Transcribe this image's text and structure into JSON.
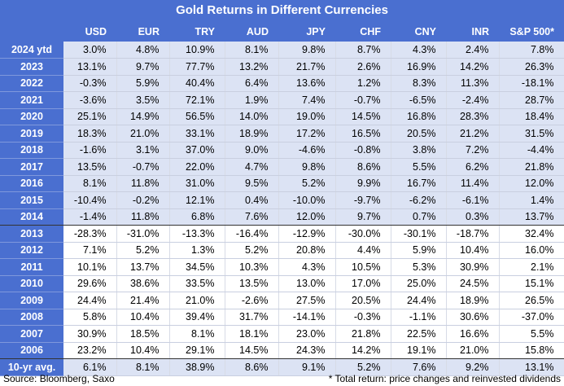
{
  "title": "Gold Returns in Different Currencies",
  "columns": [
    "",
    "USD",
    "EUR",
    "TRY",
    "AUD",
    "JPY",
    "CHF",
    "CNY",
    "INR",
    "S&P 500*"
  ],
  "rows": [
    {
      "label": "2024 ytd",
      "values": [
        "3.0%",
        "4.8%",
        "10.9%",
        "8.1%",
        "9.8%",
        "8.7%",
        "4.3%",
        "2.4%",
        "7.8%"
      ]
    },
    {
      "label": "2023",
      "values": [
        "13.1%",
        "9.7%",
        "77.7%",
        "13.2%",
        "21.7%",
        "2.6%",
        "16.9%",
        "14.2%",
        "26.3%"
      ]
    },
    {
      "label": "2022",
      "values": [
        "-0.3%",
        "5.9%",
        "40.4%",
        "6.4%",
        "13.6%",
        "1.2%",
        "8.3%",
        "11.3%",
        "-18.1%"
      ]
    },
    {
      "label": "2021",
      "values": [
        "-3.6%",
        "3.5%",
        "72.1%",
        "1.9%",
        "7.4%",
        "-0.7%",
        "-6.5%",
        "-2.4%",
        "28.7%"
      ]
    },
    {
      "label": "2020",
      "values": [
        "25.1%",
        "14.9%",
        "56.5%",
        "14.0%",
        "19.0%",
        "14.5%",
        "16.8%",
        "28.3%",
        "18.4%"
      ]
    },
    {
      "label": "2019",
      "values": [
        "18.3%",
        "21.0%",
        "33.1%",
        "18.9%",
        "17.2%",
        "16.5%",
        "20.5%",
        "21.2%",
        "31.5%"
      ]
    },
    {
      "label": "2018",
      "values": [
        "-1.6%",
        "3.1%",
        "37.0%",
        "9.0%",
        "-4.6%",
        "-0.8%",
        "3.8%",
        "7.2%",
        "-4.4%"
      ]
    },
    {
      "label": "2017",
      "values": [
        "13.5%",
        "-0.7%",
        "22.0%",
        "4.7%",
        "9.8%",
        "8.6%",
        "5.5%",
        "6.2%",
        "21.8%"
      ]
    },
    {
      "label": "2016",
      "values": [
        "8.1%",
        "11.8%",
        "31.0%",
        "9.5%",
        "5.2%",
        "9.9%",
        "16.7%",
        "11.4%",
        "12.0%"
      ]
    },
    {
      "label": "2015",
      "values": [
        "-10.4%",
        "-0.2%",
        "12.1%",
        "0.4%",
        "-10.0%",
        "-9.7%",
        "-6.2%",
        "-6.1%",
        "1.4%"
      ]
    },
    {
      "label": "2014",
      "values": [
        "-1.4%",
        "11.8%",
        "6.8%",
        "7.6%",
        "12.0%",
        "9.7%",
        "0.7%",
        "0.3%",
        "13.7%"
      ]
    },
    {
      "label": "2013",
      "values": [
        "-28.3%",
        "-31.0%",
        "-13.3%",
        "-16.4%",
        "-12.9%",
        "-30.0%",
        "-30.1%",
        "-18.7%",
        "32.4%"
      ]
    },
    {
      "label": "2012",
      "values": [
        "7.1%",
        "5.2%",
        "1.3%",
        "5.2%",
        "20.8%",
        "4.4%",
        "5.9%",
        "10.4%",
        "16.0%"
      ]
    },
    {
      "label": "2011",
      "values": [
        "10.1%",
        "13.7%",
        "34.5%",
        "10.3%",
        "4.3%",
        "10.5%",
        "5.3%",
        "30.9%",
        "2.1%"
      ]
    },
    {
      "label": "2010",
      "values": [
        "29.6%",
        "38.6%",
        "33.5%",
        "13.5%",
        "13.0%",
        "17.0%",
        "25.0%",
        "24.5%",
        "15.1%"
      ]
    },
    {
      "label": "2009",
      "values": [
        "24.4%",
        "21.4%",
        "21.0%",
        "-2.6%",
        "27.5%",
        "20.5%",
        "24.4%",
        "18.9%",
        "26.5%"
      ]
    },
    {
      "label": "2008",
      "values": [
        "5.8%",
        "10.4%",
        "39.4%",
        "31.7%",
        "-14.1%",
        "-0.3%",
        "-1.1%",
        "30.6%",
        "-37.0%"
      ]
    },
    {
      "label": "2007",
      "values": [
        "30.9%",
        "18.5%",
        "8.1%",
        "18.1%",
        "23.0%",
        "21.8%",
        "22.5%",
        "16.6%",
        "5.5%"
      ]
    },
    {
      "label": "2006",
      "values": [
        "23.2%",
        "10.4%",
        "29.1%",
        "14.5%",
        "24.3%",
        "14.2%",
        "19.1%",
        "21.0%",
        "15.8%"
      ]
    },
    {
      "label": "10-yr avg.",
      "values": [
        "6.1%",
        "8.1%",
        "38.9%",
        "8.6%",
        "9.1%",
        "5.2%",
        "7.6%",
        "9.2%",
        "13.1%"
      ]
    }
  ],
  "footer": {
    "source": "Source: Bloomberg, Saxo",
    "note": "* Total return: price changes and reinvested dividends"
  }
}
